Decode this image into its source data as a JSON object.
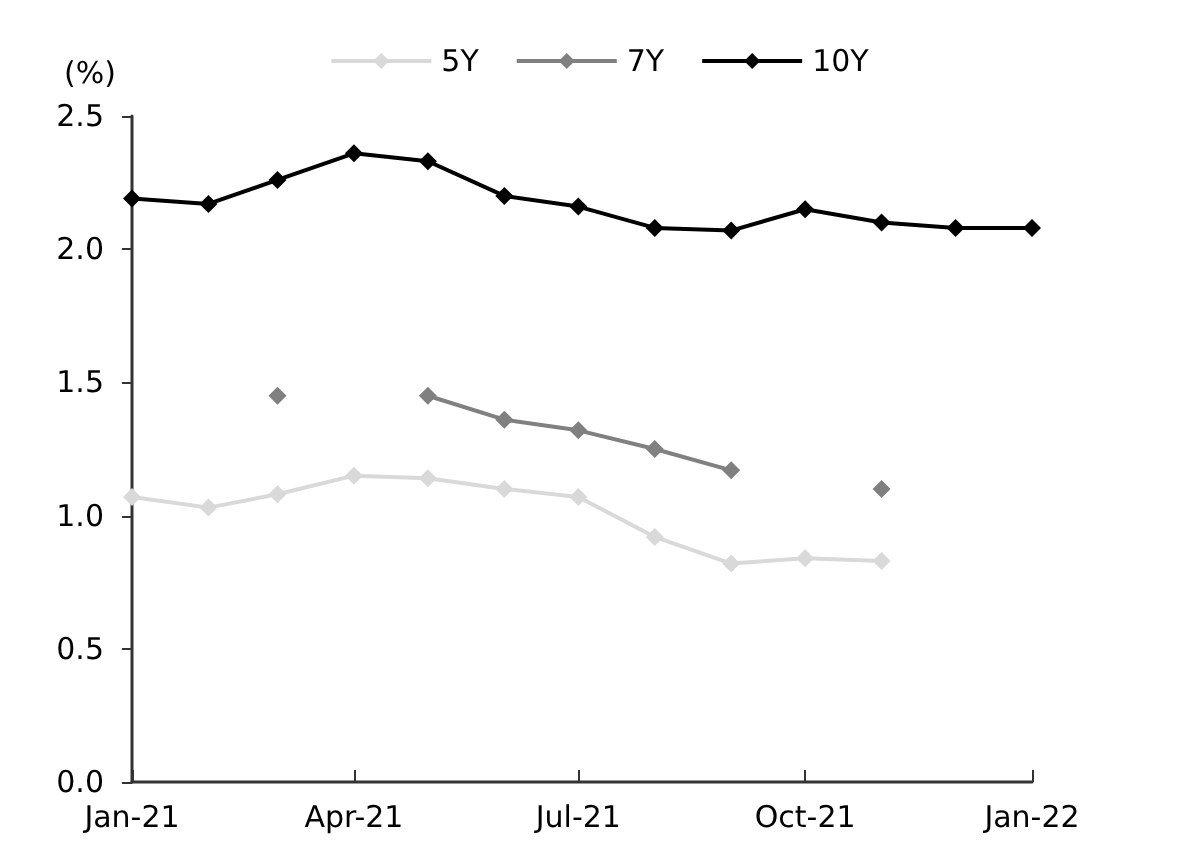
{
  "chart_data": {
    "type": "line",
    "ylabel": "(%)",
    "x": [
      "2021-01",
      "2021-02",
      "2021-03",
      "2021-04",
      "2021-05",
      "2021-06",
      "2021-07",
      "2021-08",
      "2021-09",
      "2021-10",
      "2021-11",
      "2021-12",
      "2022-01"
    ],
    "series": [
      {
        "name": "5Y",
        "color": "#d9d9d9",
        "values": [
          1.07,
          1.03,
          1.08,
          1.15,
          1.14,
          1.1,
          1.07,
          0.92,
          0.82,
          0.84,
          0.83,
          null,
          null
        ]
      },
      {
        "name": "7Y",
        "color": "#808080",
        "values": [
          null,
          null,
          1.45,
          null,
          1.45,
          1.36,
          1.32,
          1.25,
          1.17,
          null,
          1.1,
          null,
          null
        ]
      },
      {
        "name": "10Y",
        "color": "#000000",
        "values": [
          2.19,
          2.17,
          2.26,
          2.36,
          2.33,
          2.2,
          2.16,
          2.08,
          2.07,
          2.15,
          2.1,
          2.08,
          2.08
        ]
      }
    ],
    "xlim": [
      "2021-01",
      "2022-01"
    ],
    "xticks": [
      {
        "value": "2021-01",
        "label": "Jan-21"
      },
      {
        "value": "2021-04",
        "label": "Apr-21"
      },
      {
        "value": "2021-07",
        "label": "Jul-21"
      },
      {
        "value": "2021-10",
        "label": "Oct-21"
      },
      {
        "value": "2022-01",
        "label": "Jan-22"
      }
    ],
    "ylim": [
      0,
      2.5
    ],
    "yticks": [
      {
        "value": 0,
        "label": "0.0"
      },
      0.5,
      {
        "value": 1,
        "label": "1.0"
      },
      1.5,
      {
        "value": 2,
        "label": "2.0"
      },
      2.5
    ],
    "grid": false,
    "legend": "top",
    "marker": "diamond",
    "line_style": "solid"
  }
}
